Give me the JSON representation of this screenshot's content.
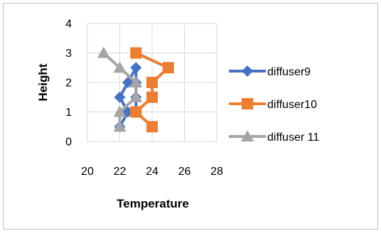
{
  "chart_data": {
    "type": "line",
    "xlabel": "Temperature",
    "ylabel": "Height",
    "xlim": [
      20,
      28
    ],
    "ylim": [
      0,
      4
    ],
    "x_ticks": [
      "20",
      "22",
      "24",
      "26",
      "28"
    ],
    "y_ticks": [
      "0",
      "1",
      "2",
      "3",
      "4"
    ],
    "grid": true,
    "legend": "right",
    "series": [
      {
        "name": "diffuser9",
        "color": "#4472c4",
        "marker": "diamond",
        "points": [
          [
            22,
            0.5
          ],
          [
            22.5,
            1
          ],
          [
            22,
            1.5
          ],
          [
            22.5,
            2
          ],
          [
            23,
            2.5
          ],
          [
            23,
            2
          ],
          [
            23,
            1.5
          ],
          [
            23,
            1
          ]
        ]
      },
      {
        "name": "diffuser10",
        "color": "#ed7d31",
        "marker": "square",
        "points": [
          [
            23,
            3
          ],
          [
            25,
            2.5
          ],
          [
            24,
            2
          ],
          [
            24,
            1.5
          ],
          [
            23,
            1
          ],
          [
            24,
            0.5
          ]
        ]
      },
      {
        "name": "diffuser 11",
        "color": "#a5a5a5",
        "marker": "triangle",
        "points": [
          [
            21,
            3
          ],
          [
            22,
            2.5
          ],
          [
            23,
            2
          ],
          [
            23,
            1.5
          ],
          [
            22,
            1
          ],
          [
            22,
            0.5
          ]
        ]
      }
    ]
  }
}
